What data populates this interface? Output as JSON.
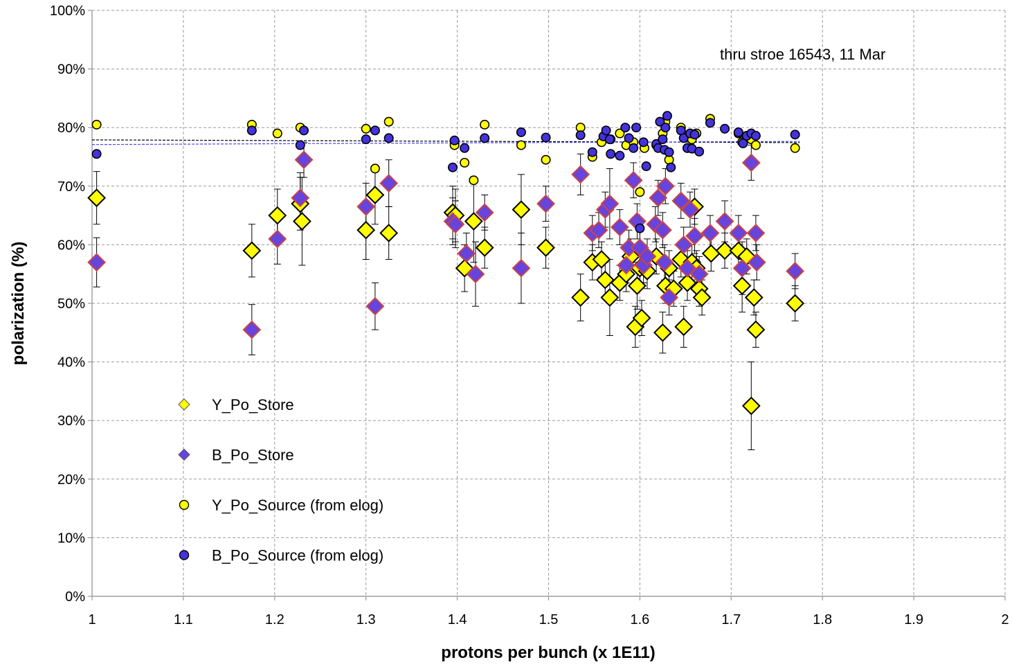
{
  "chart_data": {
    "type": "scatter",
    "xlabel": "protons per bunch (x 1E11)",
    "ylabel": "polarization (%)",
    "xlim": [
      1,
      2
    ],
    "ylim": [
      0,
      100
    ],
    "x_ticks": [
      "1",
      "1.1",
      "1.2",
      "1.3",
      "1.4",
      "1.5",
      "1.6",
      "1.7",
      "1.8",
      "1.9",
      "2"
    ],
    "y_ticks": [
      "0%",
      "10%",
      "20%",
      "30%",
      "40%",
      "50%",
      "60%",
      "70%",
      "80%",
      "90%",
      "100%"
    ],
    "grid": true,
    "legend_position": "lower-left",
    "annotation": "thru stroe 16543, 11 Mar",
    "series": [
      {
        "name": "Y_Po_Store",
        "marker": "diamond",
        "color": "#ffff00",
        "stroke": "#000000",
        "points": [
          [
            1.005,
            68,
            4.5
          ],
          [
            1.175,
            59,
            4.5
          ],
          [
            1.203,
            65,
            4.5
          ],
          [
            1.228,
            67,
            4.5
          ],
          [
            1.23,
            64,
            7.5
          ],
          [
            1.3,
            62.5,
            5
          ],
          [
            1.31,
            68.5,
            5
          ],
          [
            1.325,
            62,
            4.5
          ],
          [
            1.395,
            65.5,
            4.5
          ],
          [
            1.398,
            65,
            4.5
          ],
          [
            1.408,
            56,
            4
          ],
          [
            1.418,
            64,
            7
          ],
          [
            1.43,
            59.5,
            3.5
          ],
          [
            1.47,
            66,
            6
          ],
          [
            1.497,
            59.5,
            3.5
          ],
          [
            1.535,
            51,
            4
          ],
          [
            1.548,
            57,
            3
          ],
          [
            1.558,
            57.5,
            3
          ],
          [
            1.562,
            54,
            3
          ],
          [
            1.567,
            51,
            6.5
          ],
          [
            1.578,
            53.5,
            3
          ],
          [
            1.585,
            55,
            3
          ],
          [
            1.59,
            58,
            3
          ],
          [
            1.595,
            46,
            3.5
          ],
          [
            1.597,
            53,
            4
          ],
          [
            1.6,
            56,
            3
          ],
          [
            1.602,
            47.5,
            3
          ],
          [
            1.608,
            55.5,
            3
          ],
          [
            1.618,
            58,
            3
          ],
          [
            1.625,
            45,
            3.5
          ],
          [
            1.628,
            53,
            3
          ],
          [
            1.632,
            56,
            3
          ],
          [
            1.637,
            52.5,
            3
          ],
          [
            1.645,
            57.5,
            3
          ],
          [
            1.648,
            46,
            3.5
          ],
          [
            1.652,
            53.5,
            3
          ],
          [
            1.657,
            57,
            3
          ],
          [
            1.66,
            66.5,
            3
          ],
          [
            1.662,
            56,
            3
          ],
          [
            1.665,
            52.5,
            3
          ],
          [
            1.668,
            51,
            3
          ],
          [
            1.678,
            58.5,
            3
          ],
          [
            1.693,
            59,
            3
          ],
          [
            1.708,
            59,
            3
          ],
          [
            1.712,
            53,
            4.5
          ],
          [
            1.717,
            58,
            3
          ],
          [
            1.722,
            32.5,
            7.5
          ],
          [
            1.725,
            51,
            3
          ],
          [
            1.727,
            45.5,
            3
          ],
          [
            1.77,
            50,
            3
          ]
        ]
      },
      {
        "name": "B_Po_Store",
        "marker": "diamond",
        "color": "#6644dd",
        "stroke": "#cc4444",
        "points": [
          [
            1.005,
            57,
            4.2
          ],
          [
            1.175,
            45.5,
            4.3
          ],
          [
            1.203,
            61,
            4.3
          ],
          [
            1.228,
            68,
            4.3
          ],
          [
            1.232,
            74.5,
            3
          ],
          [
            1.3,
            66.5,
            4
          ],
          [
            1.31,
            49.5,
            4
          ],
          [
            1.325,
            70.5,
            4
          ],
          [
            1.395,
            64,
            4
          ],
          [
            1.398,
            63.5,
            4
          ],
          [
            1.41,
            58.5,
            3.5
          ],
          [
            1.42,
            55,
            5.5
          ],
          [
            1.43,
            65.5,
            3
          ],
          [
            1.47,
            56,
            6
          ],
          [
            1.497,
            67,
            3
          ],
          [
            1.535,
            72,
            3.5
          ],
          [
            1.548,
            62,
            3
          ],
          [
            1.555,
            62.5,
            3
          ],
          [
            1.562,
            66,
            3
          ],
          [
            1.567,
            67,
            6
          ],
          [
            1.578,
            63,
            3
          ],
          [
            1.585,
            56.5,
            3
          ],
          [
            1.588,
            59.5,
            3
          ],
          [
            1.593,
            71,
            3
          ],
          [
            1.597,
            64,
            3
          ],
          [
            1.6,
            59.5,
            3
          ],
          [
            1.604,
            56.5,
            3
          ],
          [
            1.608,
            58,
            3
          ],
          [
            1.617,
            63.5,
            3
          ],
          [
            1.62,
            68,
            3
          ],
          [
            1.625,
            62.5,
            3
          ],
          [
            1.627,
            57,
            3
          ],
          [
            1.628,
            70,
            3
          ],
          [
            1.632,
            51,
            3
          ],
          [
            1.645,
            67.5,
            3
          ],
          [
            1.648,
            60,
            3
          ],
          [
            1.652,
            56,
            3
          ],
          [
            1.655,
            66,
            3
          ],
          [
            1.66,
            61.5,
            3
          ],
          [
            1.665,
            55,
            3
          ],
          [
            1.677,
            62,
            3
          ],
          [
            1.693,
            64,
            3.5
          ],
          [
            1.708,
            62,
            3
          ],
          [
            1.712,
            56,
            4.5
          ],
          [
            1.722,
            74,
            3
          ],
          [
            1.727,
            62,
            3
          ],
          [
            1.728,
            57,
            3
          ],
          [
            1.77,
            55.5,
            3
          ]
        ]
      },
      {
        "name": "Y_Po_Source (from elog)",
        "marker": "circle",
        "color": "#ffff00",
        "stroke": "#000000",
        "points": [
          [
            1.005,
            80.5
          ],
          [
            1.175,
            80.5
          ],
          [
            1.203,
            79
          ],
          [
            1.228,
            80
          ],
          [
            1.3,
            79.8
          ],
          [
            1.31,
            73
          ],
          [
            1.325,
            81
          ],
          [
            1.397,
            77
          ],
          [
            1.408,
            74
          ],
          [
            1.418,
            71
          ],
          [
            1.43,
            80.5
          ],
          [
            1.47,
            77
          ],
          [
            1.497,
            74.5
          ],
          [
            1.535,
            80
          ],
          [
            1.548,
            75
          ],
          [
            1.558,
            77.5
          ],
          [
            1.568,
            78
          ],
          [
            1.578,
            79
          ],
          [
            1.585,
            77
          ],
          [
            1.593,
            77.5
          ],
          [
            1.6,
            69
          ],
          [
            1.605,
            76.5
          ],
          [
            1.618,
            77
          ],
          [
            1.625,
            79
          ],
          [
            1.628,
            81
          ],
          [
            1.632,
            74.5
          ],
          [
            1.645,
            80
          ],
          [
            1.652,
            76.5
          ],
          [
            1.657,
            78
          ],
          [
            1.662,
            79
          ],
          [
            1.677,
            81.5
          ],
          [
            1.708,
            79
          ],
          [
            1.712,
            77.5
          ],
          [
            1.722,
            78
          ],
          [
            1.727,
            77
          ],
          [
            1.77,
            76.5
          ]
        ]
      },
      {
        "name": "B_Po_Source (from elog)",
        "marker": "circle",
        "color": "#4433dd",
        "stroke": "#000000",
        "points": [
          [
            1.005,
            75.5
          ],
          [
            1.175,
            79.5
          ],
          [
            1.228,
            77
          ],
          [
            1.232,
            79.5
          ],
          [
            1.3,
            78
          ],
          [
            1.31,
            79.5
          ],
          [
            1.325,
            78.2
          ],
          [
            1.395,
            73.2
          ],
          [
            1.397,
            77.8
          ],
          [
            1.408,
            76.5
          ],
          [
            1.43,
            78.2
          ],
          [
            1.47,
            79.2
          ],
          [
            1.497,
            78.3
          ],
          [
            1.535,
            78.7
          ],
          [
            1.548,
            75.8
          ],
          [
            1.56,
            78.5
          ],
          [
            1.563,
            79.5
          ],
          [
            1.567,
            78
          ],
          [
            1.568,
            75.5
          ],
          [
            1.578,
            75.2
          ],
          [
            1.584,
            80
          ],
          [
            1.588,
            78.2
          ],
          [
            1.593,
            76.5
          ],
          [
            1.596,
            80
          ],
          [
            1.6,
            62.8
          ],
          [
            1.604,
            77.5
          ],
          [
            1.607,
            73.4
          ],
          [
            1.618,
            77.2
          ],
          [
            1.62,
            76.5
          ],
          [
            1.622,
            81
          ],
          [
            1.625,
            78
          ],
          [
            1.627,
            76.2
          ],
          [
            1.628,
            80
          ],
          [
            1.63,
            82
          ],
          [
            1.632,
            75.8
          ],
          [
            1.634,
            73.2
          ],
          [
            1.645,
            79.5
          ],
          [
            1.648,
            78.2
          ],
          [
            1.652,
            76.5
          ],
          [
            1.655,
            79
          ],
          [
            1.657,
            76.4
          ],
          [
            1.66,
            78.8
          ],
          [
            1.665,
            75.9
          ],
          [
            1.677,
            80.8
          ],
          [
            1.693,
            79.8
          ],
          [
            1.708,
            79.2
          ],
          [
            1.713,
            77.3
          ],
          [
            1.717,
            78.6
          ],
          [
            1.722,
            79
          ],
          [
            1.727,
            78.6
          ],
          [
            1.77,
            78.8
          ]
        ]
      }
    ],
    "trendlines": [
      {
        "series": "Y_Po_Source (from elog)",
        "color": "#000000",
        "y_at_xmin": 77.9,
        "y_at_xmax": 77.3
      },
      {
        "series": "B_Po_Source (from elog)",
        "color": "#4444ff",
        "y_at_xmin": 77.1,
        "y_at_xmax": 77.8
      }
    ]
  }
}
